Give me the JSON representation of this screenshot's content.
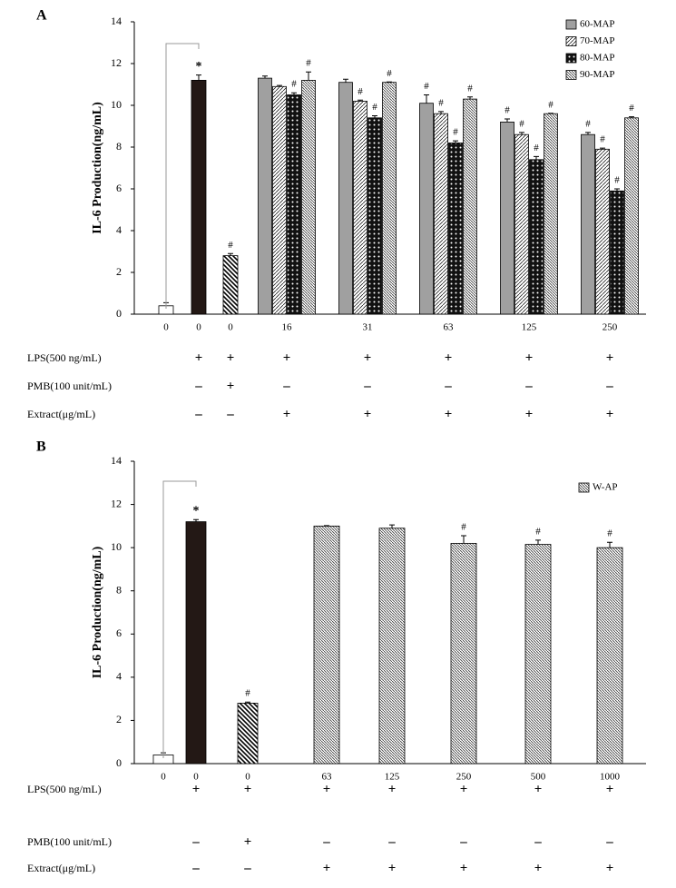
{
  "chart_data": [
    {
      "type": "bar",
      "panel_label": "A",
      "ylabel": "IL-6 Production(ng/mL)",
      "ylim": [
        0,
        14
      ],
      "yticks": [
        0,
        2,
        4,
        6,
        8,
        10,
        12,
        14
      ],
      "categories": [
        "0",
        "0",
        "0",
        "16",
        "31",
        "63",
        "125",
        "250"
      ],
      "controls": {
        "values": [
          0.4,
          11.2,
          2.8
        ],
        "errors": [
          0.15,
          0.25,
          0.1
        ],
        "markers": [
          null,
          "*",
          "#"
        ]
      },
      "series": [
        {
          "name": "60-MAP",
          "values": [
            null,
            null,
            null,
            11.3,
            11.1,
            10.1,
            9.2,
            8.6
          ],
          "errors": [
            null,
            null,
            null,
            0.1,
            0.15,
            0.4,
            0.15,
            0.1
          ],
          "markers": [
            null,
            null,
            null,
            null,
            null,
            "#",
            "#",
            "#"
          ]
        },
        {
          "name": "70-MAP",
          "values": [
            null,
            null,
            null,
            10.9,
            10.2,
            9.6,
            8.6,
            7.9
          ],
          "errors": [
            null,
            null,
            null,
            0.05,
            0.05,
            0.1,
            0.1,
            0.05
          ],
          "markers": [
            null,
            null,
            null,
            null,
            "#",
            "#",
            "#",
            "#"
          ]
        },
        {
          "name": "80-MAP",
          "values": [
            null,
            null,
            null,
            10.5,
            9.4,
            8.2,
            7.4,
            5.9
          ],
          "errors": [
            null,
            null,
            null,
            0.1,
            0.1,
            0.1,
            0.15,
            0.1
          ],
          "markers": [
            null,
            null,
            null,
            "#",
            "#",
            "#",
            "#",
            "#"
          ]
        },
        {
          "name": "90-MAP",
          "values": [
            null,
            null,
            null,
            11.2,
            11.1,
            10.3,
            9.6,
            9.4
          ],
          "errors": [
            null,
            null,
            null,
            0.4,
            0.02,
            0.1,
            0.02,
            0.05
          ],
          "markers": [
            null,
            null,
            null,
            "#",
            "#",
            "#",
            "#",
            "#"
          ]
        }
      ],
      "treatments": [
        {
          "label": "LPS(500 ng/mL)",
          "signs": [
            null,
            "+",
            "+",
            "+",
            "+",
            "+",
            "+",
            "+"
          ]
        },
        {
          "label": "PMB(100 unit/mL)",
          "signs": [
            null,
            "–",
            "+",
            "–",
            "–",
            "–",
            "–",
            "–"
          ]
        },
        {
          "label": "Extract(μg/mL)",
          "signs": [
            null,
            "–",
            "–",
            "+",
            "+",
            "+",
            "+",
            "+"
          ]
        }
      ]
    },
    {
      "type": "bar",
      "panel_label": "B",
      "ylabel": "IL-6 Production(ng/mL)",
      "ylim": [
        0,
        14
      ],
      "yticks": [
        0,
        2,
        4,
        6,
        8,
        10,
        12,
        14
      ],
      "categories": [
        "0",
        "0",
        "0",
        "63",
        "125",
        "250",
        "500",
        "1000"
      ],
      "controls": {
        "values": [
          0.4,
          11.2,
          2.8
        ],
        "errors": [
          0.1,
          0.1,
          0.05
        ],
        "markers": [
          null,
          "*",
          "#"
        ]
      },
      "series": [
        {
          "name": "W-AP",
          "values": [
            null,
            null,
            null,
            11.0,
            10.9,
            10.2,
            10.15,
            10.0
          ],
          "errors": [
            null,
            null,
            null,
            0.02,
            0.15,
            0.35,
            0.2,
            0.25
          ],
          "markers": [
            null,
            null,
            null,
            null,
            null,
            "#",
            "#",
            "#"
          ]
        }
      ],
      "treatments": [
        {
          "label": "LPS(500 ng/mL)",
          "signs": [
            null,
            "+",
            "+",
            "+",
            "+",
            "+",
            "+",
            "+"
          ]
        },
        {
          "label": "PMB(100 unit/mL)",
          "signs": [
            null,
            "–",
            "+",
            "–",
            "–",
            "–",
            "–",
            "–"
          ]
        },
        {
          "label": "Extract(μg/mL)",
          "signs": [
            null,
            "–",
            "–",
            "+",
            "+",
            "+",
            "+",
            "+"
          ]
        }
      ]
    }
  ]
}
